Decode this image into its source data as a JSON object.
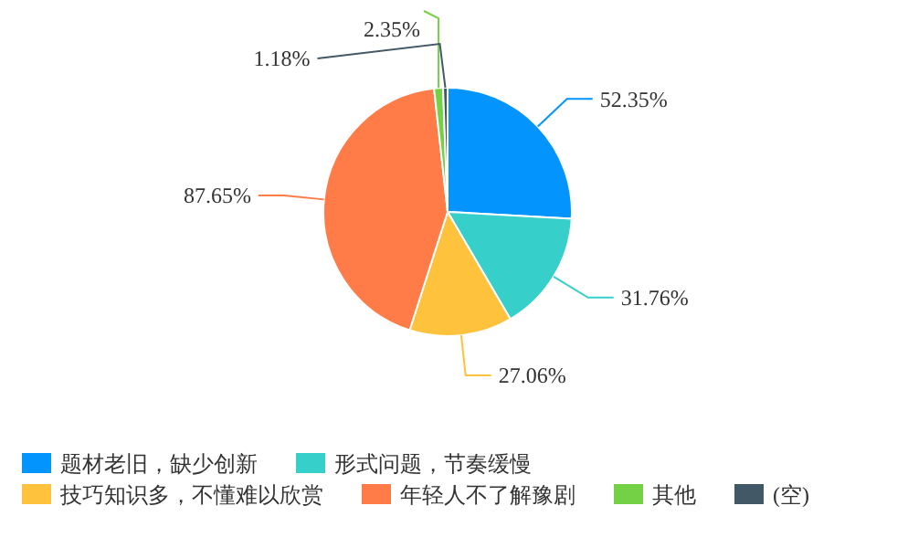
{
  "chart_data": {
    "type": "pie",
    "categories": [
      "题材老旧，缺少创新",
      "形式问题，节奏缓慢",
      "技巧知识多，不懂难以欣赏",
      "年轻人不了解豫剧",
      "其他",
      "(空)"
    ],
    "values": [
      52.35,
      31.76,
      27.06,
      87.65,
      2.35,
      1.18
    ],
    "colors": [
      "#0395fd",
      "#36cfc9",
      "#fec23d",
      "#ff7b47",
      "#74d146",
      "#435866"
    ],
    "value_labels": [
      "52.35%",
      "31.76%",
      "27.06%",
      "87.65%",
      "2.35%",
      "1.18%"
    ],
    "legend": "bottom"
  }
}
